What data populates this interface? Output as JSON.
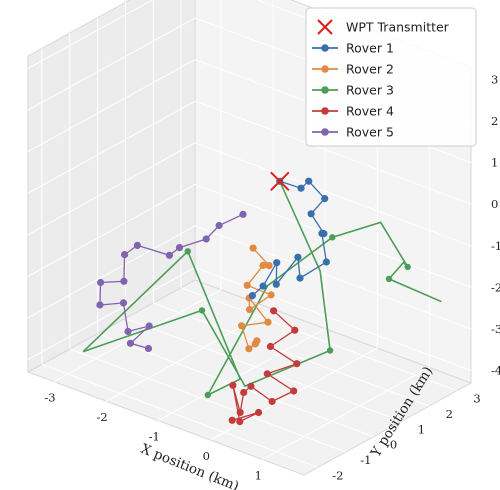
{
  "chart_data": {
    "type": "line3d",
    "title": "",
    "xlabel": "X position (km)",
    "ylabel": "Y position (km)",
    "zlabel": "",
    "xlim": [
      -3.5,
      1.8
    ],
    "ylim": [
      -2.5,
      3.5
    ],
    "zlim": [
      -4.3,
      3.3
    ],
    "x_ticks": [
      "-3",
      "-2",
      "-1",
      "0",
      "1"
    ],
    "y_ticks": [
      "-2",
      "-1",
      "0",
      "1",
      "2",
      "3"
    ],
    "z_ticks": [
      "-4",
      "-3",
      "-2",
      "-1",
      "0",
      "1",
      "2",
      "3"
    ],
    "grid": true,
    "legend_position": "top-right",
    "transmitter": {
      "name": "WPT Transmitter",
      "color": "#e0201b",
      "x": 0.0,
      "y": 0.0,
      "z": 1.0
    },
    "series": [
      {
        "name": "Rover 1",
        "color": "#3a6fae",
        "x": [
          0.0,
          0.3,
          0.5,
          0.7,
          0.6,
          0.9,
          0.7,
          1.0,
          0.6,
          0.4,
          0.2,
          0.1,
          0.0,
          -0.1
        ],
        "y": [
          0.0,
          0.2,
          0.1,
          0.3,
          0.0,
          -0.1,
          0.2,
          -0.2,
          -0.4,
          -0.1,
          -0.5,
          -0.3,
          -0.6,
          -0.8
        ],
        "z": [
          1.0,
          0.9,
          1.2,
          0.8,
          0.5,
          0.2,
          0.0,
          -0.4,
          -0.9,
          -0.6,
          -1.2,
          -0.8,
          -1.3,
          -1.5
        ]
      },
      {
        "name": "Rover 2",
        "color": "#e08a42",
        "x": [
          -0.3,
          -0.1,
          0.0,
          -0.2,
          0.1,
          -0.1,
          0.0,
          0.2,
          -0.2,
          0.1,
          -0.1,
          0.2
        ],
        "y": [
          -0.4,
          -0.2,
          -0.6,
          -0.8,
          -0.5,
          -0.9,
          -1.1,
          -0.8,
          -1.0,
          -1.3,
          -0.7,
          -1.2
        ],
        "z": [
          -0.6,
          -1.0,
          -0.8,
          -1.3,
          -1.5,
          -1.8,
          -1.4,
          -2.0,
          -2.2,
          -2.5,
          -2.7,
          -2.3
        ]
      },
      {
        "name": "Rover 3",
        "color": "#4b9e57",
        "x": [
          0.0,
          1.2,
          1.5,
          0.4,
          -0.8,
          -2.6,
          -1.5,
          0.2,
          -0.1,
          0.3,
          0.9,
          1.4,
          1.6,
          1.2,
          0.6,
          1.5
        ],
        "y": [
          0.0,
          -0.8,
          -1.0,
          -2.0,
          -1.3,
          -2.2,
          -0.5,
          -1.8,
          -2.4,
          -1.0,
          0.2,
          1.0,
          1.6,
          2.2,
          2.8,
          3.0
        ],
        "z": [
          1.0,
          -0.3,
          -2.0,
          -3.0,
          -2.0,
          -3.5,
          -1.2,
          -3.0,
          -3.3,
          -1.0,
          0.0,
          0.3,
          -0.9,
          -1.2,
          -2.1,
          -2.3
        ]
      },
      {
        "name": "Rover 4",
        "color": "#c43b3b",
        "x": [
          0.2,
          0.5,
          0.3,
          0.7,
          0.4,
          0.8,
          0.6,
          0.3,
          0.0,
          0.2,
          -0.1,
          0.3,
          0.5,
          0.1
        ],
        "y": [
          -0.6,
          -0.4,
          -0.9,
          -0.7,
          -1.2,
          -1.0,
          -1.4,
          -1.6,
          -1.3,
          -1.8,
          -1.5,
          -2.0,
          -1.7,
          -1.9
        ],
        "z": [
          -1.8,
          -2.2,
          -2.5,
          -2.8,
          -3.0,
          -3.3,
          -3.5,
          -3.2,
          -3.6,
          -3.8,
          -3.4,
          -3.9,
          -3.7,
          -4.0
        ]
      },
      {
        "name": "Rover 5",
        "color": "#8064ad",
        "x": [
          -0.6,
          -0.9,
          -1.2,
          -1.5,
          -1.8,
          -2.2,
          -2.5,
          -2.3,
          -2.8,
          -2.6,
          -2.2,
          -1.9,
          -1.6,
          -1.8,
          -1.4
        ],
        "y": [
          -0.2,
          -0.5,
          -0.4,
          -0.8,
          -0.6,
          -1.0,
          -0.9,
          -1.3,
          -1.2,
          -1.6,
          -1.5,
          -1.9,
          -1.7,
          -2.0,
          -2.1
        ],
        "z": [
          0.0,
          -0.3,
          -0.8,
          -1.0,
          -1.4,
          -1.2,
          -1.6,
          -2.0,
          -2.3,
          -2.6,
          -2.4,
          -2.8,
          -2.6,
          -3.0,
          -2.9
        ]
      }
    ]
  }
}
